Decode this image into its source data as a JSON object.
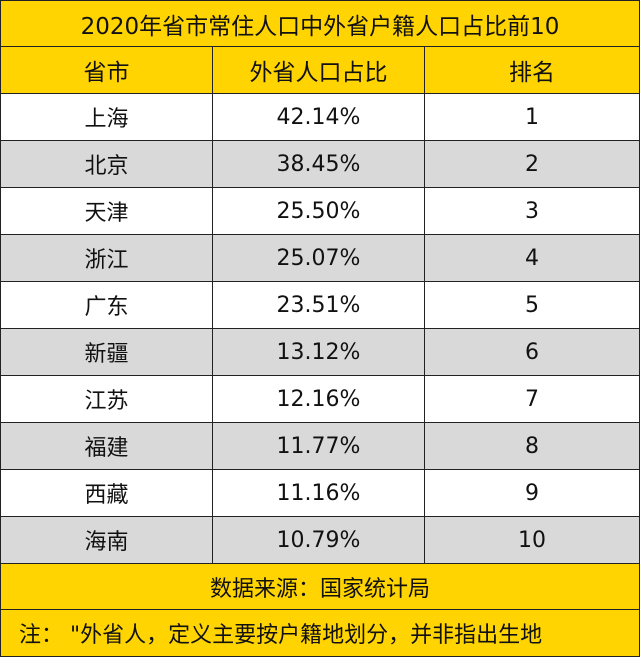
{
  "table": {
    "title": "2020年省市常住人口中外省户籍人口占比前10",
    "columns": [
      "省市",
      "外省人口占比",
      "排名"
    ],
    "rows": [
      {
        "province": "上海",
        "share": "42.14%",
        "rank": "1"
      },
      {
        "province": "北京",
        "share": "38.45%",
        "rank": "2"
      },
      {
        "province": "天津",
        "share": "25.50%",
        "rank": "3"
      },
      {
        "province": "浙江",
        "share": "25.07%",
        "rank": "4"
      },
      {
        "province": "广东",
        "share": "23.51%",
        "rank": "5"
      },
      {
        "province": "新疆",
        "share": "13.12%",
        "rank": "6"
      },
      {
        "province": "江苏",
        "share": "12.16%",
        "rank": "7"
      },
      {
        "province": "福建",
        "share": "11.77%",
        "rank": "8"
      },
      {
        "province": "西藏",
        "share": "11.16%",
        "rank": "9"
      },
      {
        "province": "海南",
        "share": "10.79%",
        "rank": "10"
      }
    ],
    "source": "数据来源：国家统计局",
    "note": "注：  \"外省人，定义主要按户籍地划分，并非指出生地"
  },
  "colors": {
    "header_fill": "#ffd400",
    "alt_row_fill": "#d9d9d9",
    "row_fill": "#ffffff",
    "grid_line": "#222222"
  }
}
